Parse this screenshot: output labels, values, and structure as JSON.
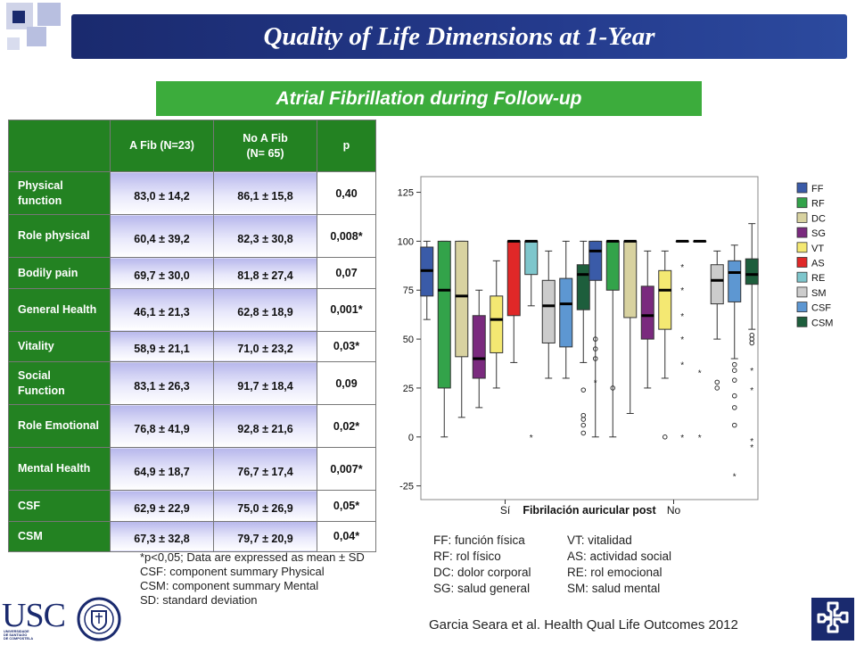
{
  "title": "Quality of Life Dimensions at 1-Year",
  "subtitle": "Atrial Fibrillation during Follow-up",
  "table": {
    "headers": [
      "",
      "A Fib (N=23)",
      "No A Fib\n(N= 65)",
      "p"
    ],
    "rows": [
      {
        "label": "Physical function",
        "afib": "83,0 ± 14,2",
        "noafib": "86,1 ± 15,8",
        "p": "0,40"
      },
      {
        "label": "Role physical",
        "afib": "60,4 ± 39,2",
        "noafib": "82,3 ± 30,8",
        "p": "0,008*"
      },
      {
        "label": "Bodily pain",
        "afib": "69,7 ± 30,0",
        "noafib": "81,8 ± 27,4",
        "p": "0,07"
      },
      {
        "label": "General Health",
        "afib": "46,1 ± 21,3",
        "noafib": "62,8 ± 18,9",
        "p": "0,001*"
      },
      {
        "label": "Vitality",
        "afib": "58,9 ± 21,1",
        "noafib": "71,0 ± 23,2",
        "p": "0,03*"
      },
      {
        "label": "Social Function",
        "afib": "83,1 ± 26,3",
        "noafib": "91,7 ± 18,4",
        "p": "0,09"
      },
      {
        "label": "Role Emotional",
        "afib": "76,8 ± 41,9",
        "noafib": "92,8 ± 21,6",
        "p": "0,02*"
      },
      {
        "label": "Mental Health",
        "afib": "64,9 ± 18,7",
        "noafib": "76,7 ± 17,4",
        "p": "0,007*"
      },
      {
        "label": "CSF",
        "afib": "62,9 ± 22,9",
        "noafib": "75,0 ± 26,9",
        "p": "0,05*"
      },
      {
        "label": "CSM",
        "afib": "67,3 ± 32,8",
        "noafib": "79,7 ± 20,9",
        "p": "0,04*"
      }
    ]
  },
  "notes": [
    "*p<0,05; Data are expressed as mean ± SD",
    "CSF: component summary Physical",
    "CSM: component summary Mental",
    "SD: standard deviation"
  ],
  "abbreviations": [
    "FF: función física",
    "VT: vitalidad",
    "RF: rol físico",
    "AS: actividad social",
    "DC: dolor corporal",
    "RE: rol emocional",
    "SG: salud general",
    "SM: salud mental"
  ],
  "citation": "Garcia Seara et al. Health Qual Life Outcomes 2012",
  "logo_text": "USC",
  "logo_sub": "UNIVERSIDADE\nDE SANTIAGO\nDE COMPOSTELA",
  "chart_data": {
    "type": "boxplot",
    "xlabel": "Fibrilación auricular post",
    "categories": [
      "Sí",
      "No"
    ],
    "yticks": [
      -25,
      0,
      25,
      50,
      75,
      100,
      125
    ],
    "ylim": [
      -32,
      133
    ],
    "legend_position": "right",
    "series": [
      {
        "name": "FF",
        "color": "#3a5ba8",
        "boxes": [
          {
            "whislo": 60,
            "q1": 72,
            "med": 85,
            "q3": 97,
            "whishi": 100,
            "outliers": []
          },
          {
            "whislo": 0,
            "q1": 80,
            "med": 95,
            "q3": 100,
            "whishi": 100,
            "outliers": [
              [
                50,
                "o"
              ],
              [
                45,
                "o"
              ],
              [
                40,
                "o"
              ],
              [
                28,
                "*"
              ]
            ]
          }
        ]
      },
      {
        "name": "RF",
        "color": "#33a34a",
        "boxes": [
          {
            "whislo": 0,
            "q1": 25,
            "med": 75,
            "q3": 100,
            "whishi": 100,
            "outliers": []
          },
          {
            "whislo": 0,
            "q1": 75,
            "med": 100,
            "q3": 100,
            "whishi": 100,
            "outliers": [
              [
                25,
                "o"
              ]
            ]
          }
        ]
      },
      {
        "name": "DC",
        "color": "#d8d2a0",
        "boxes": [
          {
            "whislo": 10,
            "q1": 41,
            "med": 72,
            "q3": 100,
            "whishi": 100,
            "outliers": []
          },
          {
            "whislo": 12,
            "q1": 61,
            "med": 100,
            "q3": 100,
            "whishi": 100,
            "outliers": []
          }
        ]
      },
      {
        "name": "SG",
        "color": "#7a2a7e",
        "boxes": [
          {
            "whislo": 15,
            "q1": 30,
            "med": 40,
            "q3": 62,
            "whishi": 75,
            "outliers": []
          },
          {
            "whislo": 25,
            "q1": 50,
            "med": 62,
            "q3": 77,
            "whishi": 95,
            "outliers": []
          }
        ]
      },
      {
        "name": "VT",
        "color": "#f4e872",
        "boxes": [
          {
            "whislo": 25,
            "q1": 43,
            "med": 60,
            "q3": 72,
            "whishi": 90,
            "outliers": []
          },
          {
            "whislo": 30,
            "q1": 55,
            "med": 75,
            "q3": 85,
            "whishi": 95,
            "outliers": [
              [
                0,
                "o"
              ]
            ]
          }
        ]
      },
      {
        "name": "AS",
        "color": "#e02828",
        "boxes": [
          {
            "whislo": 38,
            "q1": 62,
            "med": 100,
            "q3": 100,
            "whishi": 100,
            "outliers": []
          },
          {
            "whislo": 100,
            "q1": 100,
            "med": 100,
            "q3": 100,
            "whishi": 100,
            "outliers": [
              [
                87,
                "*"
              ],
              [
                75,
                "*"
              ],
              [
                62,
                "*"
              ],
              [
                50,
                "*"
              ],
              [
                37,
                "*"
              ],
              [
                0,
                "*"
              ]
            ]
          }
        ]
      },
      {
        "name": "RE",
        "color": "#7ec6cc",
        "boxes": [
          {
            "whislo": 67,
            "q1": 83,
            "med": 100,
            "q3": 100,
            "whishi": 100,
            "outliers": [
              [
                0,
                "*"
              ]
            ]
          },
          {
            "whislo": 100,
            "q1": 100,
            "med": 100,
            "q3": 100,
            "whishi": 100,
            "outliers": [
              [
                33,
                "*"
              ],
              [
                0,
                "*"
              ]
            ]
          }
        ]
      },
      {
        "name": "SM",
        "color": "#cccccc",
        "boxes": [
          {
            "whislo": 30,
            "q1": 48,
            "med": 67,
            "q3": 80,
            "whishi": 95,
            "outliers": []
          },
          {
            "whislo": 50,
            "q1": 68,
            "med": 80,
            "q3": 88,
            "whishi": 95,
            "outliers": [
              [
                28,
                "o"
              ],
              [
                25,
                "o"
              ]
            ]
          }
        ]
      },
      {
        "name": "CSF",
        "color": "#5d97d2",
        "boxes": [
          {
            "whislo": 30,
            "q1": 46,
            "med": 68,
            "q3": 81,
            "whishi": 100,
            "outliers": []
          },
          {
            "whislo": 40,
            "q1": 69,
            "med": 84,
            "q3": 90,
            "whishi": 98,
            "outliers": [
              [
                37,
                "o"
              ],
              [
                34,
                "o"
              ],
              [
                29,
                "o"
              ],
              [
                21,
                "o"
              ],
              [
                15,
                "o"
              ],
              [
                6,
                "o"
              ],
              [
                -20,
                "*"
              ]
            ]
          }
        ]
      },
      {
        "name": "CSM",
        "color": "#1d5e3c",
        "boxes": [
          {
            "whislo": 38,
            "q1": 65,
            "med": 83,
            "q3": 88,
            "whishi": 100,
            "outliers": [
              [
                24,
                "o"
              ],
              [
                11,
                "o"
              ],
              [
                9,
                "o"
              ],
              [
                6,
                "o"
              ],
              [
                2,
                "o"
              ]
            ]
          },
          {
            "whislo": 55,
            "q1": 78,
            "med": 83,
            "q3": 91,
            "whishi": 109,
            "outliers": [
              [
                52,
                "o"
              ],
              [
                50,
                "o"
              ],
              [
                48,
                "o"
              ],
              [
                34,
                "*"
              ],
              [
                24,
                "*"
              ],
              [
                -2,
                "*"
              ],
              [
                -5,
                "*"
              ]
            ]
          }
        ]
      }
    ]
  }
}
